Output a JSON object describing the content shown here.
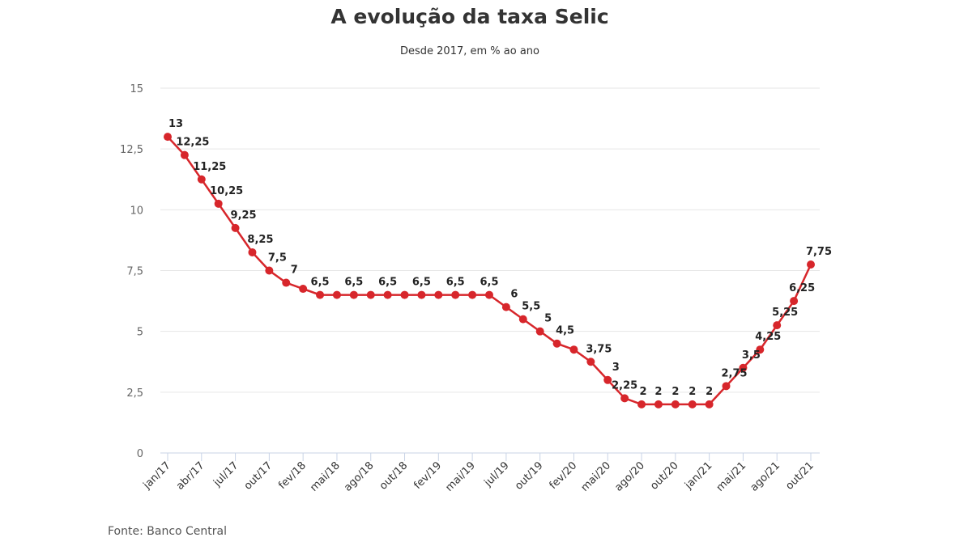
{
  "title": "A evolução da taxa Selic",
  "subtitle": "Desde 2017, em % ao ano",
  "source": "Fonte: Banco Central",
  "chart_data": {
    "type": "line",
    "title": "A evolução da taxa Selic",
    "subtitle": "Desde 2017, em % ao ano",
    "xlabel": "",
    "ylabel": "",
    "ylim": [
      0,
      15
    ],
    "yticks": [
      0,
      2.5,
      5,
      7.5,
      10,
      12.5,
      15
    ],
    "ytick_labels": [
      "0",
      "2,5",
      "5",
      "7,5",
      "10",
      "12,5",
      "15"
    ],
    "grid": true,
    "line_color": "#d7262b",
    "x_tick_labels": [
      "jan/17",
      "abr/17",
      "jul/17",
      "out/17",
      "fev/18",
      "mai/18",
      "ago/18",
      "out/18",
      "fev/19",
      "mai/19",
      "jul/19",
      "out/19",
      "fev/20",
      "mai/20",
      "ago/20",
      "out/20",
      "jan/21",
      "mai/21",
      "ago/21",
      "out/21"
    ],
    "values": [
      13,
      12.25,
      11.25,
      10.25,
      9.25,
      8.25,
      7.5,
      7,
      6.75,
      6.5,
      6.5,
      6.5,
      6.5,
      6.5,
      6.5,
      6.5,
      6.5,
      6.5,
      6.5,
      6.5,
      6,
      5.5,
      5,
      4.5,
      4.25,
      3.75,
      3,
      2.25,
      2,
      2,
      2,
      2,
      2,
      2.75,
      3.5,
      4.25,
      5.25,
      6.25,
      7.75
    ],
    "data_labels": [
      "13",
      "12,25",
      "11,25",
      "10,25",
      "9,25",
      "8,25",
      "7,5",
      "7",
      "",
      "6,5",
      "",
      "6,5",
      "",
      "6,5",
      "",
      "6,5",
      "",
      "6,5",
      "",
      "6,5",
      "6",
      "5,5",
      "5",
      "4,5",
      "",
      "3,75",
      "3",
      "2,25",
      "2",
      "2",
      "2",
      "2",
      "2",
      "2,75",
      "3,5",
      "4,25",
      "5,25",
      "6,25",
      "7,75"
    ]
  }
}
